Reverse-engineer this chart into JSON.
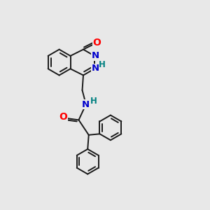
{
  "background_color": "#e8e8e8",
  "bond_color": "#1a1a1a",
  "atom_colors": {
    "O": "#ff0000",
    "N": "#0000cc",
    "H": "#008080",
    "C": "#1a1a1a"
  },
  "font_size": 8.5,
  "bond_width": 1.4,
  "figsize": [
    3.0,
    3.0
  ],
  "dpi": 100
}
